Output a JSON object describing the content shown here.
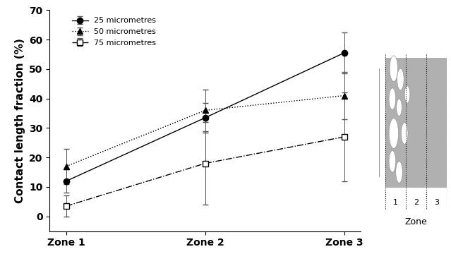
{
  "chart_data": {
    "type": "line",
    "y_label": "Contact length fraction (%)",
    "categories": [
      "Zone 1",
      "Zone 2",
      "Zone 3"
    ],
    "series": [
      {
        "name": "25 micrometres",
        "color": "#000000",
        "marker": "circle",
        "line_style": "solid",
        "values": [
          12,
          33.5,
          55.5
        ],
        "errors": [
          4,
          5,
          7
        ]
      },
      {
        "name": "50 micrometres",
        "color": "#000000",
        "marker": "triangle",
        "line_style": "dotted",
        "values": [
          17,
          36,
          41
        ],
        "errors": [
          6,
          7,
          8
        ]
      },
      {
        "name": "75 micrometres",
        "color": "#000000",
        "marker": "open_square",
        "line_style": "dashdot",
        "values": [
          3.5,
          18,
          27
        ],
        "errors": [
          3.5,
          14,
          15
        ]
      }
    ],
    "ylim": [
      -5,
      70
    ],
    "yticks": [
      0,
      10,
      20,
      30,
      40,
      50,
      60,
      70
    ],
    "grid": false,
    "legend": "upper left"
  },
  "inset": {
    "zone_labels": [
      "1",
      "2",
      "3"
    ],
    "title": "Zone"
  }
}
